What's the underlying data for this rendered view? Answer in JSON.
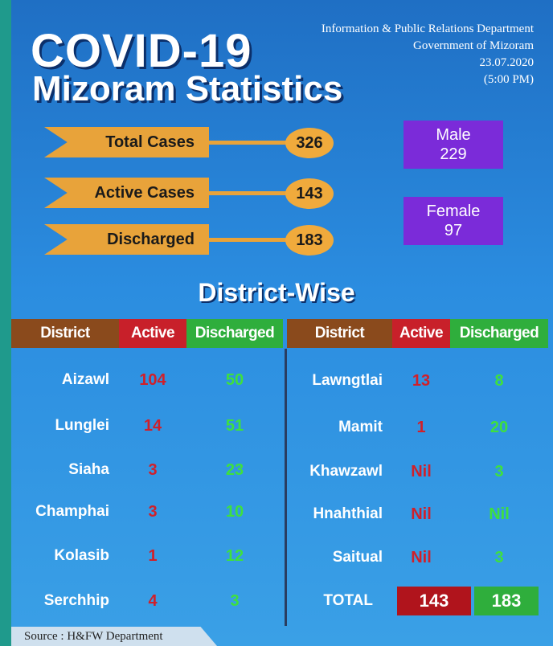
{
  "header": {
    "title": "COVID-19",
    "subtitle": "Mizoram Statistics",
    "department": [
      "Information & Public Relations Department",
      "Government of Mizoram",
      "23.07.2020",
      "(5:00 PM)"
    ]
  },
  "summary": [
    {
      "label": "Total Cases",
      "value": 326
    },
    {
      "label": "Active Cases",
      "value": 143
    },
    {
      "label": "Discharged",
      "value": 183
    }
  ],
  "gender": [
    {
      "label": "Male",
      "value": 229
    },
    {
      "label": "Female",
      "value": 97
    }
  ],
  "section_title": "District-Wise",
  "table": {
    "left": {
      "columns": [
        "District",
        "Active",
        "Discharged"
      ],
      "rows": [
        [
          "Aizawl",
          104,
          50
        ],
        [
          "Lunglei",
          14,
          51
        ],
        [
          "Siaha",
          3,
          23
        ],
        [
          "Champhai",
          3,
          10
        ],
        [
          "Kolasib",
          1,
          12
        ],
        [
          "Serchhip",
          4,
          3
        ]
      ]
    },
    "right": {
      "columns": [
        "District",
        "Active",
        "Discharged"
      ],
      "rows": [
        [
          "Lawngtlai",
          13,
          8
        ],
        [
          "Mamit",
          1,
          20
        ],
        [
          "Khawzawl",
          "Nil",
          3
        ],
        [
          "Hnahthial",
          "Nil",
          "Nil"
        ],
        [
          "Saitual",
          "Nil",
          3
        ]
      ],
      "total": [
        "TOTAL",
        143,
        183
      ]
    }
  },
  "source": "Source : H&FW Department"
}
